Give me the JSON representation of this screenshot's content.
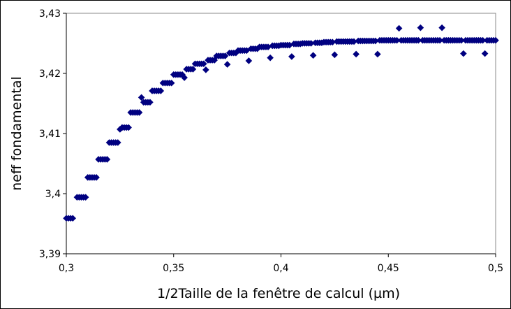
{
  "chart_data": {
    "type": "scatter",
    "title": "",
    "xlabel": "1/2Taille de la fenêtre de calcul (µm)",
    "ylabel": "neff fondamental",
    "xlim": [
      0.3,
      0.5
    ],
    "ylim": [
      3.39,
      3.43
    ],
    "xticks": [
      0.3,
      0.35,
      0.4,
      0.45,
      0.5
    ],
    "xtick_labels": [
      "0,3",
      "0,35",
      "0,4",
      "0,45",
      "0,5"
    ],
    "yticks": [
      3.39,
      3.4,
      3.41,
      3.42,
      3.43
    ],
    "ytick_labels": [
      "3,39",
      "3,4",
      "3,41",
      "3,42",
      "3,43"
    ],
    "grid": false,
    "legend": "none",
    "marker": "diamond",
    "color": "#000080",
    "series": [
      {
        "x": [
          0.3,
          0.301,
          0.302,
          0.303,
          0.305,
          0.306,
          0.307,
          0.308,
          0.309,
          0.31,
          0.311,
          0.312,
          0.313,
          0.314,
          0.315,
          0.316,
          0.317,
          0.318,
          0.319,
          0.32,
          0.321,
          0.322,
          0.323,
          0.324,
          0.325,
          0.326,
          0.327,
          0.328,
          0.329,
          0.33,
          0.331,
          0.332,
          0.333,
          0.334,
          0.335,
          0.336,
          0.337,
          0.338,
          0.339,
          0.34,
          0.341,
          0.342,
          0.343,
          0.344,
          0.345,
          0.346,
          0.347,
          0.348,
          0.349,
          0.35,
          0.351,
          0.352,
          0.353,
          0.354,
          0.355,
          0.356,
          0.357,
          0.358,
          0.359,
          0.36,
          0.361,
          0.362,
          0.363,
          0.364,
          0.365,
          0.366,
          0.367,
          0.368,
          0.369,
          0.37,
          0.371,
          0.372,
          0.373,
          0.374,
          0.375,
          0.376,
          0.377,
          0.378,
          0.379,
          0.38,
          0.381,
          0.382,
          0.383,
          0.384,
          0.385,
          0.386,
          0.387,
          0.388,
          0.389,
          0.39,
          0.391,
          0.392,
          0.393,
          0.394,
          0.395,
          0.396,
          0.397,
          0.398,
          0.399,
          0.4,
          0.401,
          0.402,
          0.403,
          0.404,
          0.405,
          0.406,
          0.407,
          0.408,
          0.409,
          0.41,
          0.411,
          0.412,
          0.413,
          0.414,
          0.415,
          0.416,
          0.417,
          0.418,
          0.419,
          0.42,
          0.421,
          0.422,
          0.423,
          0.424,
          0.425,
          0.426,
          0.427,
          0.428,
          0.429,
          0.43,
          0.431,
          0.432,
          0.433,
          0.434,
          0.435,
          0.436,
          0.437,
          0.438,
          0.439,
          0.44,
          0.441,
          0.442,
          0.443,
          0.444,
          0.445,
          0.446,
          0.447,
          0.448,
          0.449,
          0.45,
          0.451,
          0.452,
          0.453,
          0.454,
          0.455,
          0.456,
          0.457,
          0.458,
          0.459,
          0.46,
          0.461,
          0.462,
          0.463,
          0.464,
          0.465,
          0.466,
          0.467,
          0.468,
          0.469,
          0.47,
          0.471,
          0.472,
          0.473,
          0.474,
          0.475,
          0.476,
          0.477,
          0.478,
          0.479,
          0.48,
          0.481,
          0.482,
          0.483,
          0.484,
          0.485,
          0.486,
          0.487,
          0.488,
          0.489,
          0.49,
          0.491,
          0.492,
          0.493,
          0.494,
          0.495,
          0.496,
          0.497,
          0.498,
          0.499,
          0.5
        ],
        "y": [
          3.3959,
          3.3959,
          3.3959,
          3.3959,
          3.3994,
          3.3994,
          3.3994,
          3.3994,
          3.3994,
          3.4027,
          3.4027,
          3.4027,
          3.4027,
          3.4027,
          3.4057,
          3.4057,
          3.4057,
          3.4057,
          3.4057,
          3.4085,
          3.4085,
          3.4085,
          3.4085,
          3.4085,
          3.4107,
          3.411,
          3.411,
          3.411,
          3.411,
          3.4135,
          3.4135,
          3.4135,
          3.4135,
          3.4135,
          3.416,
          3.4152,
          3.4152,
          3.4152,
          3.4152,
          3.4171,
          3.4171,
          3.4171,
          3.4171,
          3.4171,
          3.4184,
          3.4184,
          3.4184,
          3.4184,
          3.4184,
          3.4198,
          3.4198,
          3.4198,
          3.4198,
          3.4198,
          3.4193,
          3.4207,
          3.4207,
          3.4207,
          3.4207,
          3.4216,
          3.4216,
          3.4216,
          3.4216,
          3.4216,
          3.4206,
          3.4222,
          3.4222,
          3.4222,
          3.4222,
          3.4229,
          3.4229,
          3.4229,
          3.4229,
          3.4229,
          3.4215,
          3.4234,
          3.4234,
          3.4234,
          3.4234,
          3.4238,
          3.4238,
          3.4238,
          3.4238,
          3.4238,
          3.4221,
          3.4241,
          3.4241,
          3.4241,
          3.4241,
          3.4244,
          3.4244,
          3.4244,
          3.4244,
          3.4244,
          3.4226,
          3.4246,
          3.4246,
          3.4246,
          3.4246,
          3.4247,
          3.4247,
          3.4247,
          3.4247,
          3.4247,
          3.4228,
          3.4249,
          3.4249,
          3.4249,
          3.4249,
          3.425,
          3.425,
          3.425,
          3.425,
          3.425,
          3.423,
          3.4251,
          3.4251,
          3.4251,
          3.4251,
          3.4252,
          3.4252,
          3.4252,
          3.4252,
          3.4252,
          3.4231,
          3.4253,
          3.4253,
          3.4253,
          3.4253,
          3.4253,
          3.4253,
          3.4253,
          3.4253,
          3.4253,
          3.4232,
          3.4254,
          3.4254,
          3.4254,
          3.4254,
          3.4254,
          3.4254,
          3.4254,
          3.4254,
          3.4254,
          3.4232,
          3.4255,
          3.4255,
          3.4255,
          3.4255,
          3.4255,
          3.4255,
          3.4255,
          3.4255,
          3.4255,
          3.4275,
          3.4255,
          3.4255,
          3.4255,
          3.4255,
          3.4255,
          3.4255,
          3.4255,
          3.4255,
          3.4255,
          3.4276,
          3.4255,
          3.4255,
          3.4255,
          3.4255,
          3.4255,
          3.4255,
          3.4255,
          3.4255,
          3.4255,
          3.4276,
          3.4255,
          3.4255,
          3.4255,
          3.4255,
          3.4255,
          3.4255,
          3.4255,
          3.4255,
          3.4255,
          3.4233,
          3.4255,
          3.4255,
          3.4255,
          3.4255,
          3.4255,
          3.4255,
          3.4255,
          3.4255,
          3.4255,
          3.4233,
          3.4255,
          3.4255,
          3.4255,
          3.4255,
          3.4255
        ]
      }
    ]
  }
}
